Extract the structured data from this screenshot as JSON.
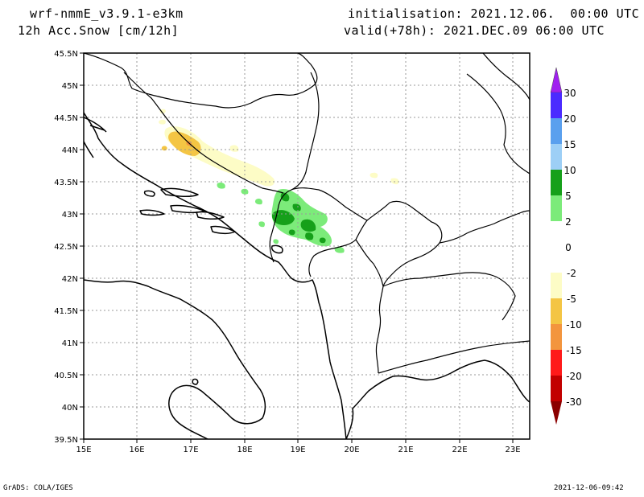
{
  "header": {
    "model": "wrf-nmmE_v3.9.1-e3km",
    "field": "12h Acc.Snow [cm/12h]",
    "init": "initialisation: 2021.12.06.  00:00 UTC",
    "valid": "valid(+78h): 2021.DEC.09 06:00 UTC"
  },
  "map": {
    "lat_labels": [
      "45.5N",
      "45N",
      "44.5N",
      "44N",
      "43.5N",
      "43N",
      "42.5N",
      "42N",
      "41.5N",
      "41N",
      "40.5N",
      "40N",
      "39.5N"
    ],
    "lon_labels": [
      "15E",
      "16E",
      "17E",
      "18E",
      "19E",
      "20E",
      "21E",
      "22E",
      "23E"
    ],
    "lat_range": [
      39.5,
      45.5
    ],
    "lon_range": [
      15,
      23.3
    ],
    "grid": "dotted"
  },
  "colorbar": {
    "labels": [
      "30",
      "20",
      "15",
      "10",
      "5",
      "2",
      "0",
      "-2",
      "-5",
      "-10",
      "-15",
      "-20",
      "-30"
    ],
    "colors": [
      "#4b2bff",
      "#5aa0ee",
      "#9dcff6",
      "#16a01a",
      "#7ceb7a",
      "#ffffff",
      "#ffffff",
      "#fdfcc6",
      "#f4c544",
      "#f3953e",
      "#ff1a1a",
      "#c20000"
    ],
    "top_arrow_color": "#a020f0",
    "bottom_arrow_color": "#8b0000"
  },
  "footer": {
    "left": "GrADS: COLA/IGES",
    "right": "2021-12-06-09:42"
  }
}
